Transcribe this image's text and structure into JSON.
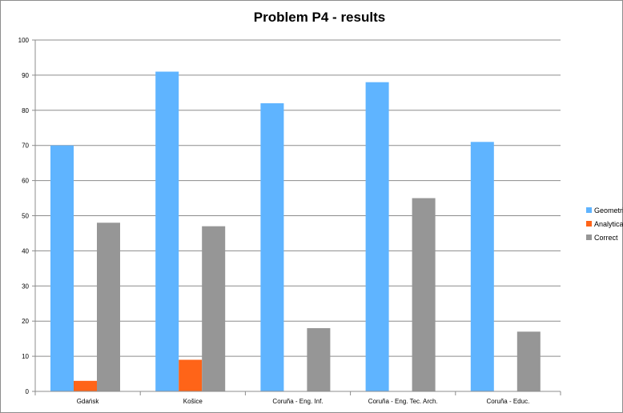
{
  "chart_data": {
    "type": "bar",
    "title": "Problem P4 - results",
    "categories": [
      "Gdańsk",
      "Košice",
      "Coruña - Eng. Inf.",
      "Coruña - Eng. Tec. Arch.",
      "Coruña - Educ."
    ],
    "series": [
      {
        "name": "Geometrical",
        "color": "#5FB4FF",
        "values": [
          70,
          91,
          82,
          88,
          71
        ]
      },
      {
        "name": "Analytical",
        "color": "#FF6418",
        "values": [
          3,
          9,
          0,
          0,
          0
        ]
      },
      {
        "name": "Correct",
        "color": "#969696",
        "values": [
          48,
          47,
          18,
          55,
          17
        ]
      }
    ],
    "ylim": [
      0,
      100
    ],
    "yticks": [
      0,
      10,
      20,
      30,
      40,
      50,
      60,
      70,
      80,
      90,
      100
    ],
    "grid": true,
    "legend": "right"
  }
}
